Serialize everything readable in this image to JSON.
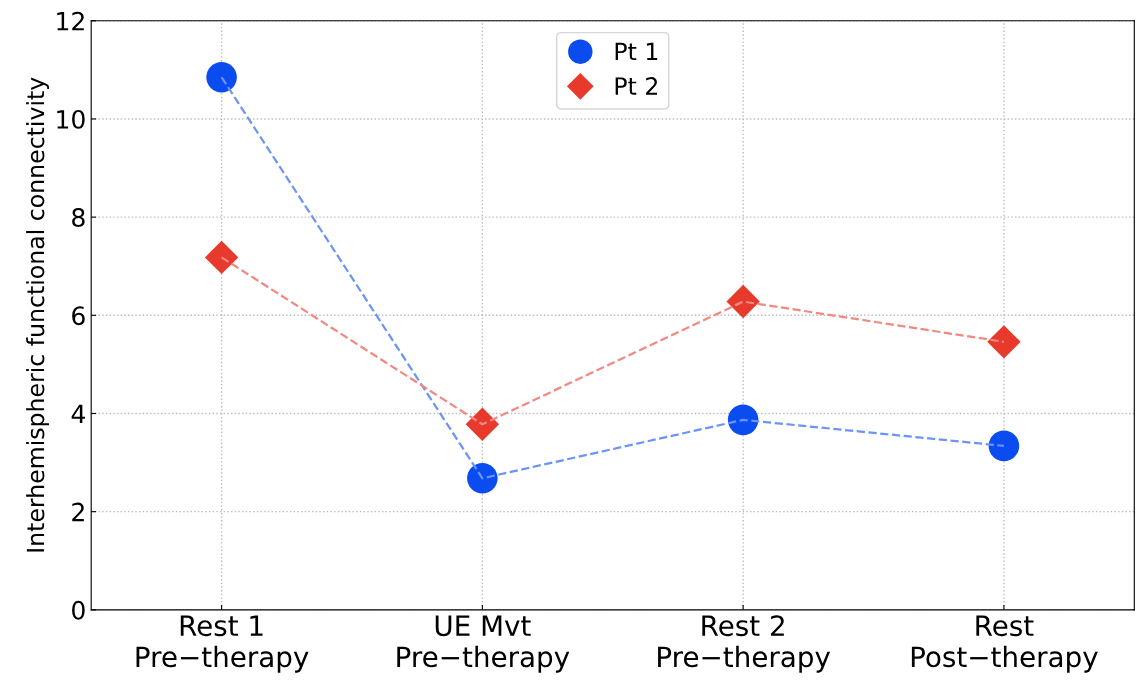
{
  "chart_data": {
    "type": "line",
    "ylabel": "Interhemispheric functional connectivity",
    "categories": [
      "Rest 1\nPre−therapy",
      "UE Mvt\nPre−therapy",
      "Rest 2\nPre−therapy",
      "Rest\nPost−therapy"
    ],
    "series": [
      {
        "name": "Pt 1",
        "color": "#0a4cf0",
        "marker": "circle",
        "values": [
          10.85,
          2.68,
          3.87,
          3.34
        ]
      },
      {
        "name": "Pt 2",
        "color": "#e83a2c",
        "marker": "diamond",
        "values": [
          7.18,
          3.78,
          6.28,
          5.46
        ]
      }
    ],
    "ylim": [
      0,
      12
    ],
    "yticks": [
      0,
      2,
      4,
      6,
      8,
      10,
      12
    ],
    "grid": true,
    "legend": "top",
    "line_style": "dashed"
  }
}
